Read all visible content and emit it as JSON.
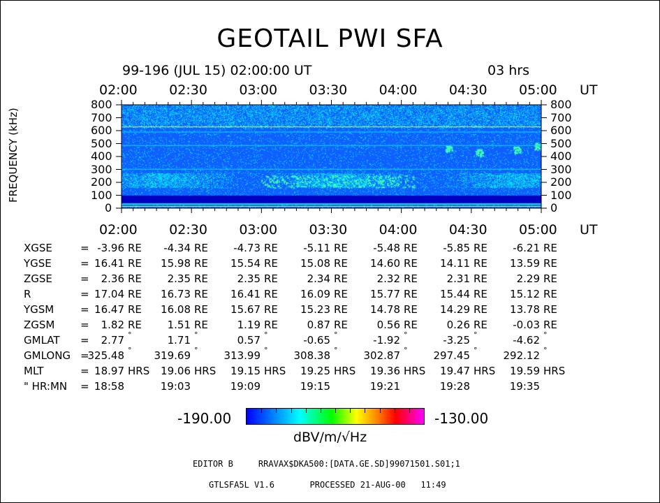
{
  "title": "GEOTAIL PWI SFA",
  "date_line": "99-196 (JUL 15) 02:00:00 UT",
  "duration": "03 hrs",
  "time_ticks": [
    "02:00",
    "02:30",
    "03:00",
    "03:30",
    "04:00",
    "04:30",
    "05:00"
  ],
  "time_unit": "UT",
  "chart_data": {
    "type": "heatmap",
    "title": "GEOTAIL PWI SFA",
    "xlabel": "UT",
    "ylabel": "FREQUENCY (kHz)",
    "x_ticks": [
      "02:00",
      "02:30",
      "03:00",
      "03:30",
      "04:00",
      "04:30",
      "05:00"
    ],
    "x_range": [
      "02:00",
      "05:00"
    ],
    "y_ticks": [
      0,
      100,
      200,
      300,
      400,
      500,
      600,
      700,
      800
    ],
    "ylim": [
      0,
      800
    ],
    "colorbar": {
      "min": -190.0,
      "max": -130.0,
      "min_label": "-190.00",
      "max_label": "-130.00",
      "unit": "dBV/m/√Hz"
    },
    "colors": {
      "background": "#1060ff",
      "band": "#00e0ff",
      "high": "#40ffb0",
      "floor": "#0000c0"
    }
  },
  "ephemeris": {
    "rows": [
      {
        "label": "XGSE",
        "unit": "RE",
        "values": [
          "-3.96",
          "-4.34",
          "-4.73",
          "-5.11",
          "-5.48",
          "-5.85",
          "-6.21"
        ]
      },
      {
        "label": "YGSE",
        "unit": "RE",
        "values": [
          "16.41",
          "15.98",
          "15.54",
          "15.08",
          "14.60",
          "14.11",
          "13.59"
        ]
      },
      {
        "label": "ZGSE",
        "unit": "RE",
        "values": [
          "2.36",
          "2.35",
          "2.35",
          "2.34",
          "2.32",
          "2.31",
          "2.29"
        ]
      },
      {
        "label": "R",
        "unit": "RE",
        "values": [
          "17.04",
          "16.73",
          "16.41",
          "16.09",
          "15.77",
          "15.44",
          "15.12"
        ]
      },
      {
        "label": "YGSM",
        "unit": "RE",
        "values": [
          "16.47",
          "16.08",
          "15.67",
          "15.23",
          "14.78",
          "14.29",
          "13.78"
        ]
      },
      {
        "label": "ZGSM",
        "unit": "RE",
        "values": [
          "1.82",
          "1.51",
          "1.19",
          "0.87",
          "0.56",
          "0.26",
          "-0.03"
        ]
      },
      {
        "label": "GMLAT",
        "unit": "°",
        "values": [
          "2.77",
          "1.71",
          "0.57",
          "-0.65",
          "-1.92",
          "-3.25",
          "-4.62"
        ]
      },
      {
        "label": "GMLONG",
        "unit": "°",
        "values": [
          "325.48",
          "319.69",
          "313.99",
          "308.38",
          "302.87",
          "297.45",
          "292.12"
        ]
      },
      {
        "label": "MLT",
        "unit": "HRS",
        "values": [
          "18.97",
          "19.06",
          "19.15",
          "19.25",
          "19.36",
          "19.47",
          "19.59"
        ]
      },
      {
        "label": "\" HR:MN",
        "unit": "",
        "values": [
          "18:58",
          "19:03",
          "19:09",
          "19:15",
          "19:21",
          "19:28",
          "19:35"
        ]
      }
    ],
    "equals": "="
  },
  "footer": {
    "editor_line": "EDITOR B     RRAVAX$DKA500:[DATA.GE.SD]99071501.S01;1",
    "version_line": "GTLSFA5L V1.6       PROCESSED 21-AUG-00   11:49"
  }
}
